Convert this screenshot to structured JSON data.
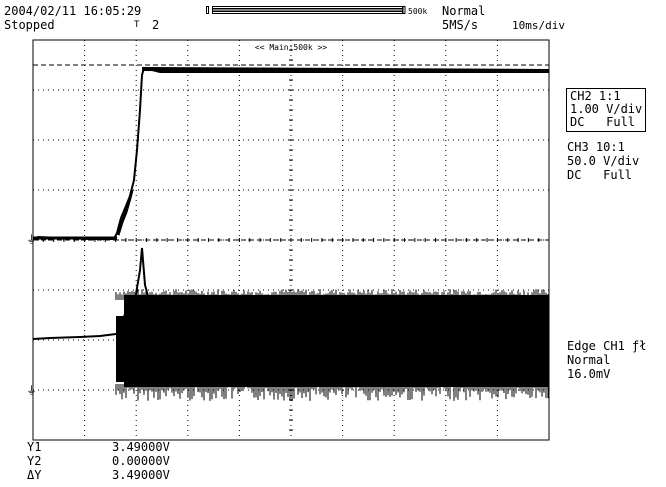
{
  "header": {
    "datetime": "2004/02/11 16:05:29",
    "status": "Stopped",
    "trigger_marker": "T",
    "trigger_marker_value": "2",
    "record_length": "500k",
    "acquisition_mode": "Normal",
    "sample_rate": "5MS/s",
    "time_base": "10ms/div"
  },
  "zoom_label": "<< Main:500k >>",
  "channels": [
    {
      "name": "CH2 1:1",
      "scale": "1.00 V/div",
      "coupling": "DC   Full",
      "selected": true
    },
    {
      "name": "CH3 10:1",
      "scale": "50.0 V/div",
      "coupling": "DC   Full",
      "selected": false
    }
  ],
  "trigger": {
    "type": "Edge CH1 ƒł",
    "mode": "Normal",
    "level": "16.0mV"
  },
  "cursors": [
    {
      "label": "Y1",
      "value": "3.49000V"
    },
    {
      "label": "Y2",
      "value": "0.00000V"
    },
    {
      "label": "ΔY",
      "value": "3.49000V"
    }
  ],
  "ground_marker_icon": "ground-icon",
  "colors": {
    "trace": "#000000",
    "background": "#ffffff",
    "grid": "#000000"
  }
}
